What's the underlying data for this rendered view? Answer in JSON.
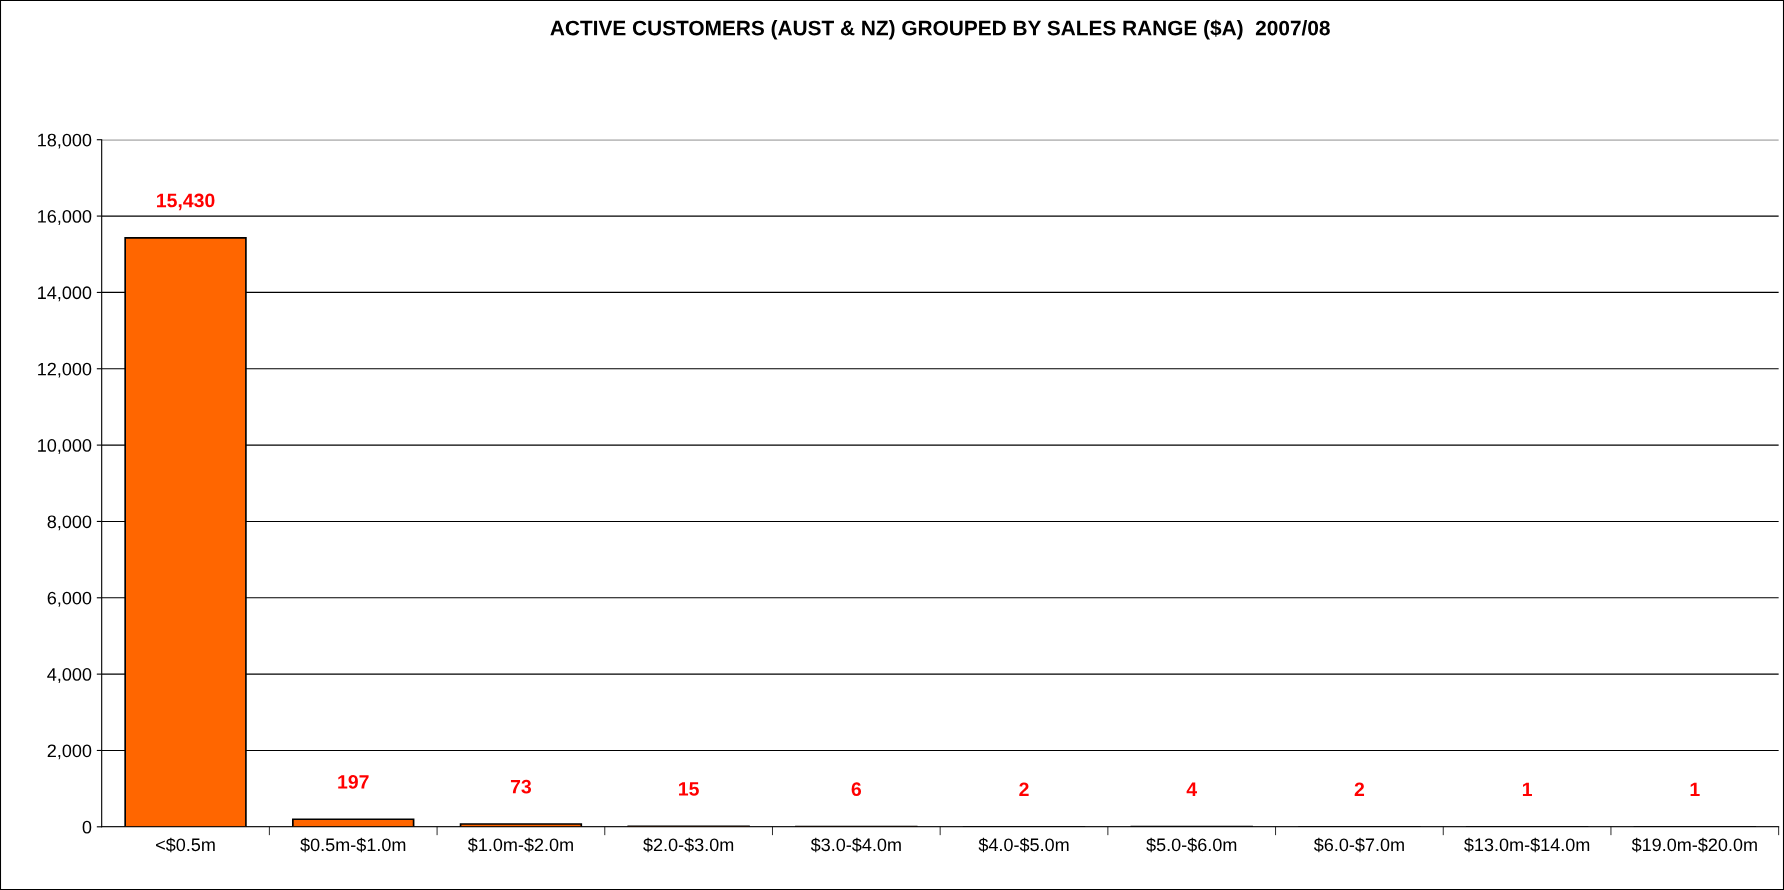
{
  "chart_data": {
    "type": "bar",
    "title": "ACTIVE CUSTOMERS (AUST & NZ) GROUPED BY SALES RANGE ($A)  2007/08",
    "categories": [
      "<$0.5m",
      "$0.5m-$1.0m",
      "$1.0m-$2.0m",
      "$2.0-$3.0m",
      "$3.0-$4.0m",
      "$4.0-$5.0m",
      "$5.0-$6.0m",
      "$6.0-$7.0m",
      "$13.0m-$14.0m",
      "$19.0m-$20.0m"
    ],
    "values": [
      15430,
      197,
      73,
      15,
      6,
      2,
      4,
      2,
      1,
      1
    ],
    "color": "#ff6600",
    "ylim": [
      0,
      18000
    ],
    "yticks": [
      {
        "value": 0,
        "label": "0"
      },
      {
        "value": 2000,
        "label": "2,000"
      },
      {
        "value": 4000,
        "label": "4,000"
      },
      {
        "value": 6000,
        "label": "6,000"
      },
      {
        "value": 8000,
        "label": "8,000"
      },
      {
        "value": 10000,
        "label": "10,000"
      },
      {
        "value": 12000,
        "label": "12,000"
      },
      {
        "value": 14000,
        "label": "14,000"
      },
      {
        "value": 16000,
        "label": "16,000"
      },
      {
        "value": 18000,
        "label": "18,000"
      }
    ],
    "grid": "y",
    "value_labels": [
      "15,430",
      "197",
      "73",
      "15",
      "6",
      "2",
      "4",
      "2",
      "1",
      "1"
    ]
  }
}
